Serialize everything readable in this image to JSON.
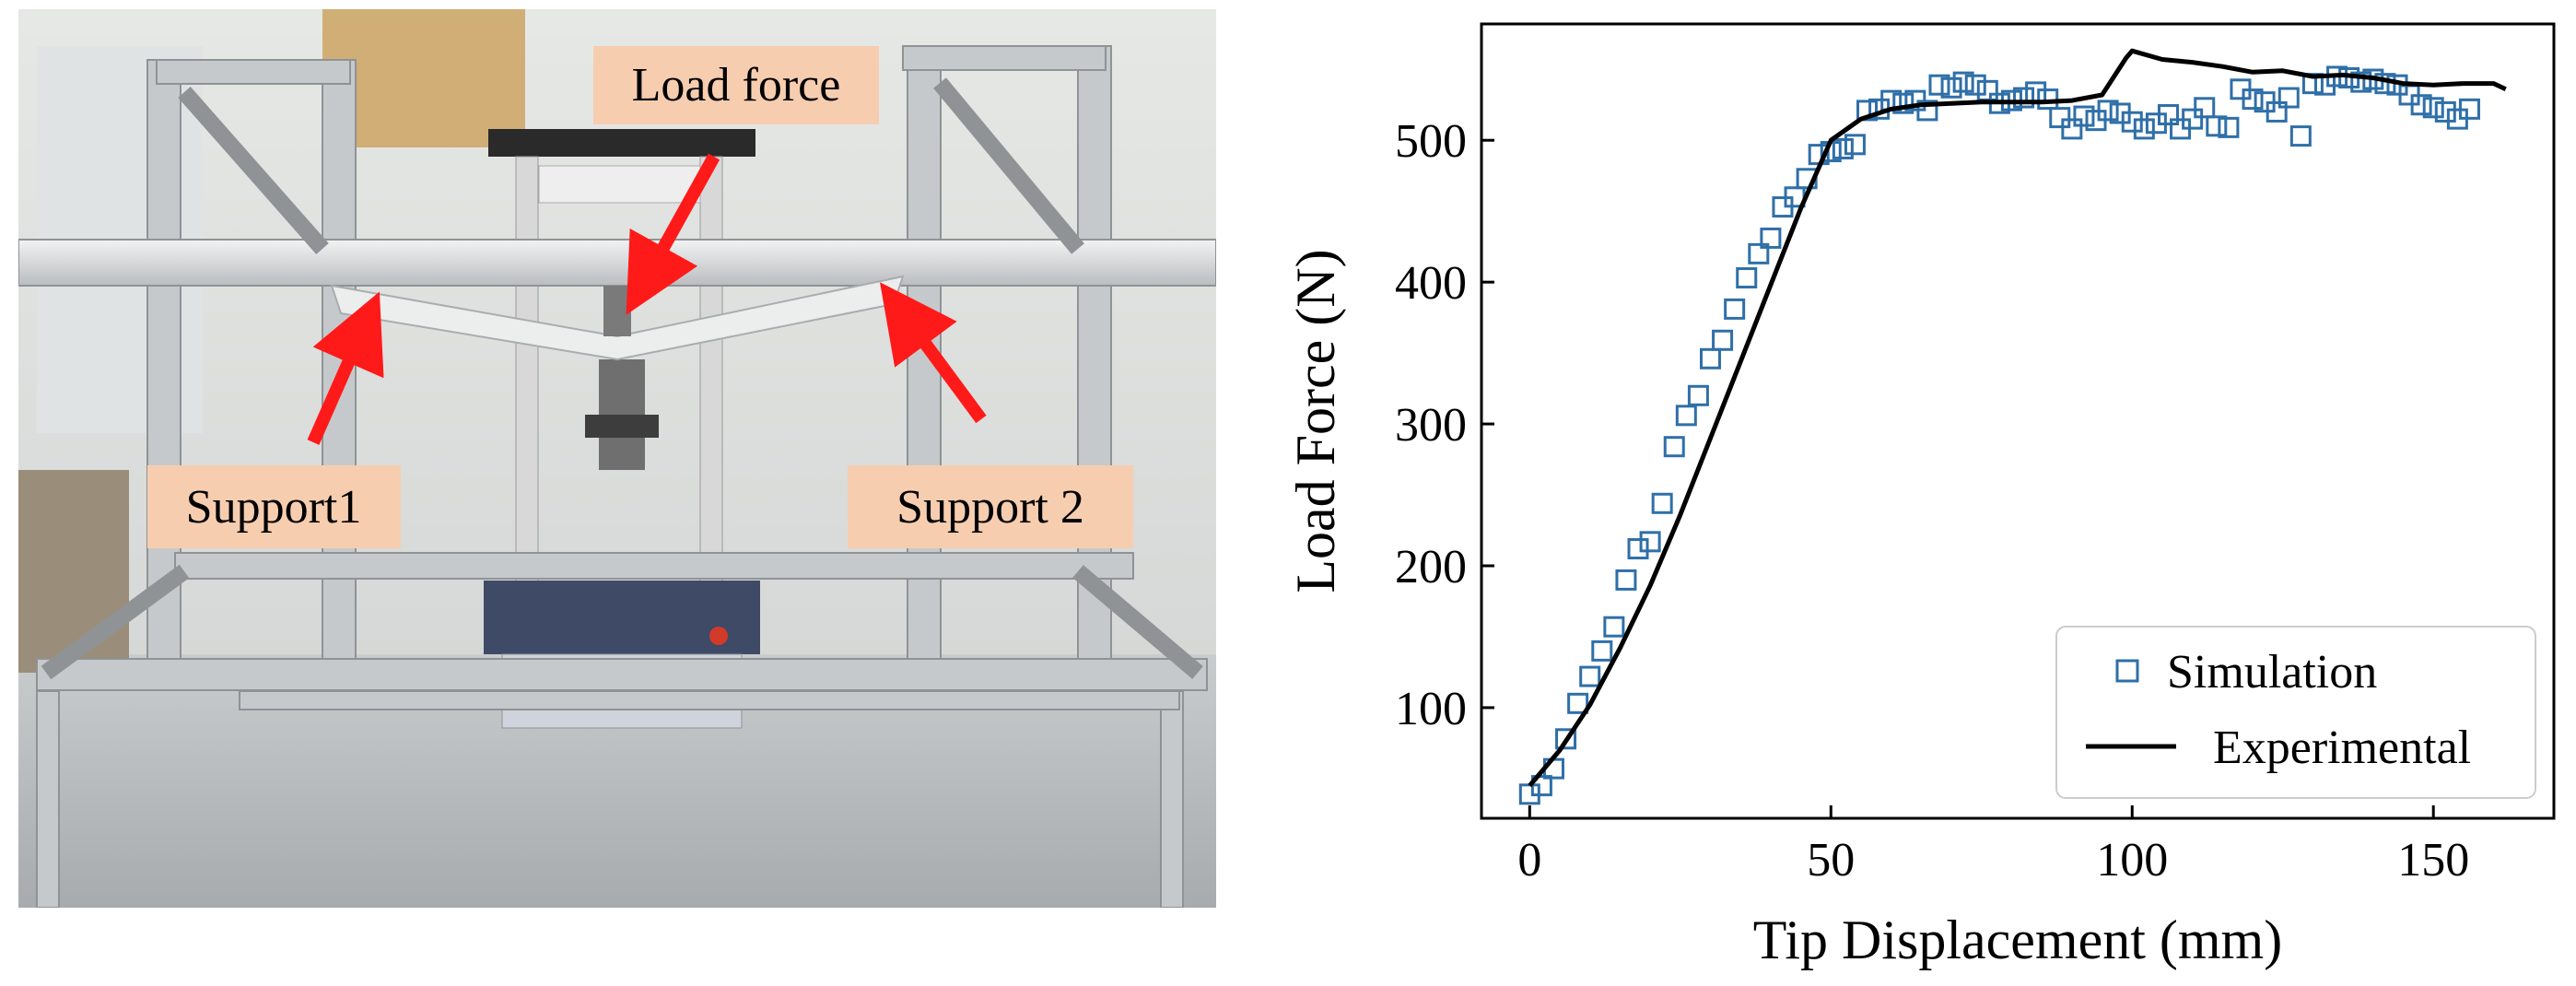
{
  "photo": {
    "callouts": {
      "load": "Load force",
      "support1": "Support1",
      "support2": "Support 2"
    },
    "colors": {
      "arrow": "#ff1a1a",
      "callout_bg": "#f7cdb0"
    }
  },
  "chart_data": {
    "type": "scatter",
    "xlabel": "Tip Displacement (mm)",
    "ylabel": "Load Force (N)",
    "xlim": [
      -8,
      170
    ],
    "ylim": [
      22,
      582
    ],
    "xticks": [
      0,
      50,
      100,
      150
    ],
    "yticks": [
      100,
      200,
      300,
      400,
      500
    ],
    "grid": false,
    "legend_position": "bottom-right",
    "series": [
      {
        "name": "Simulation",
        "kind": "scatter",
        "marker": "open-square",
        "color": "#2f6fa8",
        "points": [
          [
            0,
            39
          ],
          [
            2,
            45
          ],
          [
            4,
            57
          ],
          [
            6,
            78
          ],
          [
            8,
            103
          ],
          [
            10,
            122
          ],
          [
            12,
            140
          ],
          [
            14,
            157
          ],
          [
            16,
            190
          ],
          [
            18,
            212
          ],
          [
            20,
            217
          ],
          [
            22,
            244
          ],
          [
            24,
            284
          ],
          [
            26,
            306
          ],
          [
            28,
            320
          ],
          [
            30,
            346
          ],
          [
            32,
            359
          ],
          [
            34,
            381
          ],
          [
            36,
            403
          ],
          [
            38,
            420
          ],
          [
            40,
            431
          ],
          [
            42,
            453
          ],
          [
            44,
            460
          ],
          [
            46,
            473
          ],
          [
            48,
            490
          ],
          [
            50,
            492
          ],
          [
            52,
            494
          ],
          [
            54,
            497
          ],
          [
            56,
            521
          ],
          [
            58,
            522
          ],
          [
            60,
            528
          ],
          [
            62,
            526
          ],
          [
            64,
            528
          ],
          [
            66,
            521
          ],
          [
            68,
            539
          ],
          [
            70,
            537
          ],
          [
            72,
            541
          ],
          [
            74,
            539
          ],
          [
            76,
            535
          ],
          [
            78,
            526
          ],
          [
            80,
            528
          ],
          [
            82,
            530
          ],
          [
            84,
            534
          ],
          [
            86,
            529
          ],
          [
            88,
            516
          ],
          [
            90,
            508
          ],
          [
            92,
            517
          ],
          [
            94,
            514
          ],
          [
            96,
            521
          ],
          [
            98,
            519
          ],
          [
            100,
            513
          ],
          [
            102,
            508
          ],
          [
            104,
            512
          ],
          [
            106,
            518
          ],
          [
            108,
            508
          ],
          [
            110,
            515
          ],
          [
            112,
            523
          ],
          [
            114,
            510
          ],
          [
            116,
            509
          ],
          [
            118,
            536
          ],
          [
            120,
            529
          ],
          [
            122,
            527
          ],
          [
            124,
            520
          ],
          [
            126,
            530
          ],
          [
            128,
            503
          ],
          [
            130,
            540
          ],
          [
            132,
            539
          ],
          [
            134,
            545
          ],
          [
            136,
            544
          ],
          [
            138,
            541
          ],
          [
            140,
            543
          ],
          [
            142,
            540
          ],
          [
            144,
            539
          ],
          [
            146,
            532
          ],
          [
            148,
            525
          ],
          [
            150,
            523
          ],
          [
            152,
            520
          ],
          [
            154,
            515
          ],
          [
            156,
            522
          ]
        ]
      },
      {
        "name": "Experimental",
        "kind": "line",
        "color": "#000000",
        "points": [
          [
            0,
            45
          ],
          [
            5,
            70
          ],
          [
            10,
            102
          ],
          [
            15,
            142
          ],
          [
            20,
            186
          ],
          [
            25,
            236
          ],
          [
            30,
            290
          ],
          [
            35,
            344
          ],
          [
            40,
            398
          ],
          [
            45,
            452
          ],
          [
            50,
            500
          ],
          [
            55,
            515
          ],
          [
            60,
            522
          ],
          [
            65,
            525
          ],
          [
            70,
            526
          ],
          [
            75,
            527
          ],
          [
            80,
            527
          ],
          [
            85,
            527
          ],
          [
            90,
            528
          ],
          [
            95,
            532
          ],
          [
            97,
            545
          ],
          [
            99,
            558
          ],
          [
            100,
            563
          ],
          [
            105,
            557
          ],
          [
            110,
            555
          ],
          [
            115,
            552
          ],
          [
            120,
            548
          ],
          [
            125,
            549
          ],
          [
            130,
            545
          ],
          [
            135,
            546
          ],
          [
            140,
            544
          ],
          [
            145,
            540
          ],
          [
            150,
            539
          ],
          [
            155,
            540
          ],
          [
            160,
            540
          ],
          [
            162,
            536
          ]
        ]
      }
    ]
  }
}
